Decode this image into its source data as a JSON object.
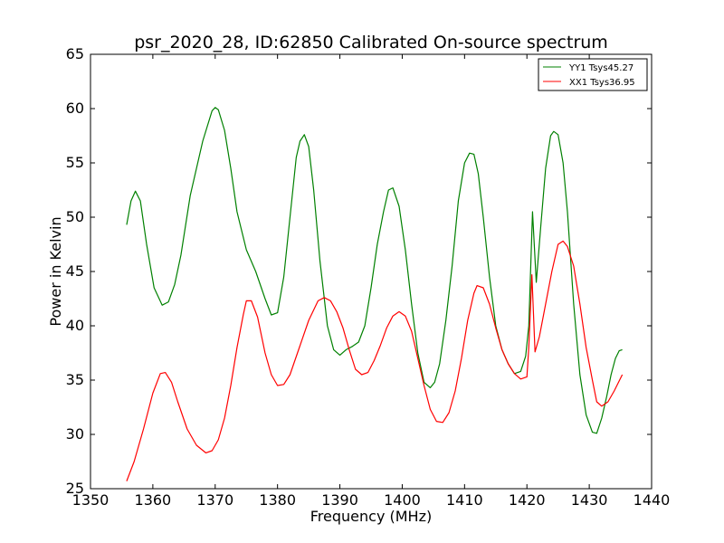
{
  "chart_data": {
    "type": "line",
    "title": "psr_2020_28, ID:62850 Calibrated On-source spectrum",
    "xlabel": "Frequency (MHz)",
    "ylabel": "Power in Kelvin",
    "xlim": [
      1350,
      1440
    ],
    "ylim": [
      25,
      65
    ],
    "xticks": [
      "1350",
      "1360",
      "1370",
      "1380",
      "1390",
      "1400",
      "1410",
      "1420",
      "1430",
      "1440"
    ],
    "yticks": [
      "25",
      "30",
      "35",
      "40",
      "45",
      "50",
      "55",
      "60",
      "65"
    ],
    "grid": false,
    "legend_position": "top-right",
    "series": [
      {
        "name": "YY1 Tsys45.27",
        "color": "#008000",
        "x": [
          1355.8,
          1356.5,
          1357.2,
          1358.0,
          1359.0,
          1360.2,
          1361.5,
          1362.5,
          1363.5,
          1364.5,
          1366.0,
          1368.0,
          1369.5,
          1370.0,
          1370.5,
          1371.5,
          1372.5,
          1373.5,
          1375.0,
          1376.5,
          1378.0,
          1379.0,
          1380.0,
          1381.0,
          1382.0,
          1383.0,
          1383.6,
          1384.3,
          1385.0,
          1385.8,
          1386.8,
          1388.0,
          1389.0,
          1390.0,
          1391.0,
          1392.0,
          1393.0,
          1394.0,
          1395.0,
          1396.0,
          1397.0,
          1397.8,
          1398.5,
          1399.5,
          1400.5,
          1401.5,
          1402.5,
          1403.5,
          1404.5,
          1405.2,
          1406.0,
          1407.0,
          1408.0,
          1409.0,
          1410.0,
          1410.8,
          1411.5,
          1412.2,
          1413.0,
          1414.0,
          1415.0,
          1416.0,
          1417.0,
          1418.0,
          1419.0,
          1419.8,
          1420.3,
          1420.9,
          1421.5,
          1422.2,
          1423.0,
          1423.8,
          1424.3,
          1425.0,
          1425.8,
          1426.5,
          1427.5,
          1428.5,
          1429.5,
          1430.5,
          1431.2,
          1432.0,
          1432.8,
          1433.5,
          1434.2,
          1434.8,
          1435.3
        ],
        "values": [
          49.3,
          51.5,
          52.4,
          51.5,
          47.5,
          43.5,
          41.9,
          42.2,
          43.8,
          46.5,
          52.0,
          57.0,
          59.8,
          60.1,
          59.9,
          58.0,
          54.5,
          50.5,
          47.0,
          45.0,
          42.5,
          41.0,
          41.2,
          44.5,
          50.0,
          55.5,
          57.0,
          57.6,
          56.5,
          52.5,
          46.0,
          40.0,
          37.8,
          37.3,
          37.8,
          38.1,
          38.5,
          40.0,
          43.5,
          47.5,
          50.5,
          52.5,
          52.7,
          51.0,
          47.0,
          42.0,
          37.5,
          34.8,
          34.3,
          34.8,
          36.5,
          40.5,
          45.5,
          51.5,
          55.0,
          55.9,
          55.8,
          54.0,
          50.0,
          44.5,
          40.0,
          37.8,
          36.5,
          35.6,
          35.8,
          37.2,
          40.0,
          50.5,
          44.0,
          49.0,
          54.5,
          57.5,
          57.9,
          57.6,
          55.0,
          50.5,
          42.0,
          35.5,
          31.8,
          30.2,
          30.1,
          31.5,
          33.5,
          35.5,
          37.0,
          37.7,
          37.8
        ]
      },
      {
        "name": "XX1 Tsys36.95",
        "color": "#ff0000",
        "x": [
          1355.8,
          1357.0,
          1358.5,
          1360.0,
          1361.2,
          1362.0,
          1363.0,
          1364.0,
          1365.5,
          1367.0,
          1368.5,
          1369.5,
          1370.5,
          1371.5,
          1372.5,
          1373.5,
          1374.5,
          1375.0,
          1375.8,
          1376.8,
          1378.0,
          1379.0,
          1380.0,
          1381.0,
          1382.0,
          1383.5,
          1385.0,
          1386.5,
          1387.5,
          1388.5,
          1389.5,
          1390.5,
          1391.5,
          1392.5,
          1393.5,
          1394.5,
          1395.5,
          1396.5,
          1397.5,
          1398.5,
          1399.5,
          1400.5,
          1401.5,
          1402.5,
          1403.5,
          1404.5,
          1405.5,
          1406.5,
          1407.5,
          1408.5,
          1409.5,
          1410.5,
          1411.5,
          1412.0,
          1413.0,
          1414.0,
          1415.0,
          1416.0,
          1417.0,
          1418.0,
          1419.0,
          1420.0,
          1420.3,
          1420.8,
          1421.3,
          1422.0,
          1423.0,
          1424.0,
          1425.0,
          1425.8,
          1426.5,
          1427.5,
          1428.5,
          1429.5,
          1430.5,
          1431.2,
          1432.0,
          1433.0,
          1434.0,
          1435.3
        ],
        "values": [
          25.7,
          27.5,
          30.5,
          33.8,
          35.6,
          35.7,
          34.8,
          33.0,
          30.5,
          29.0,
          28.3,
          28.5,
          29.5,
          31.5,
          34.5,
          38.0,
          41.0,
          42.3,
          42.3,
          40.8,
          37.5,
          35.5,
          34.5,
          34.6,
          35.5,
          38.0,
          40.5,
          42.3,
          42.6,
          42.3,
          41.3,
          39.8,
          37.8,
          36.0,
          35.5,
          35.7,
          36.8,
          38.2,
          39.8,
          40.9,
          41.3,
          40.9,
          39.5,
          37.0,
          34.5,
          32.3,
          31.2,
          31.1,
          32.0,
          34.0,
          37.0,
          40.5,
          43.0,
          43.7,
          43.5,
          42.0,
          39.8,
          37.8,
          36.5,
          35.6,
          35.1,
          35.3,
          38.0,
          44.7,
          37.6,
          39.0,
          42.0,
          45.0,
          47.5,
          47.8,
          47.3,
          45.5,
          42.0,
          38.0,
          35.0,
          33.0,
          32.6,
          33.0,
          34.0,
          35.5
        ]
      }
    ]
  }
}
